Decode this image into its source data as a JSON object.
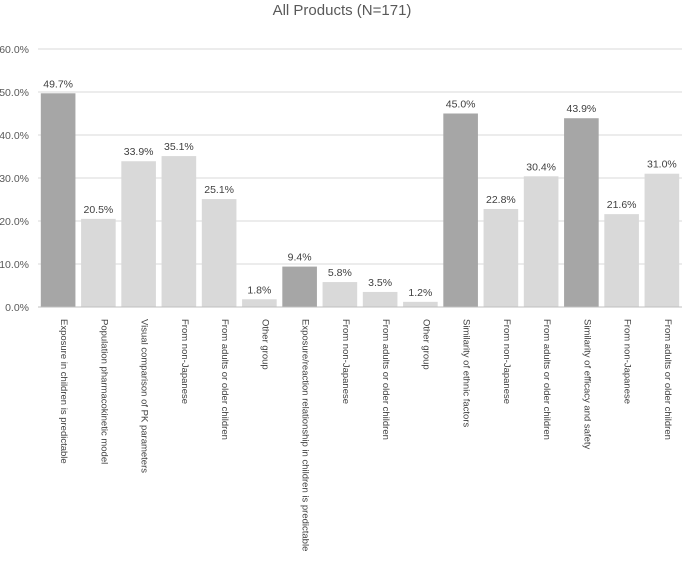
{
  "chart_data": {
    "type": "bar",
    "title": "All Products (N=171)",
    "xlabel": "",
    "ylabel": "",
    "ylim": [
      0,
      60
    ],
    "yticks": [
      0,
      10,
      20,
      30,
      40,
      50,
      60
    ],
    "ytick_labels": [
      "0.0%",
      "10.0%",
      "20.0%",
      "30.0%",
      "40.0%",
      "50.0%",
      "60.0%"
    ],
    "grid": true,
    "legend": "none",
    "categories": [
      "Exposure in children is predictable",
      "Population pharmacokinetic model",
      "Visual comparison of PK parameters",
      "From non-Japanese",
      "From adults or older children",
      "Other group",
      "Exposure/reaction relationship in children is predictable",
      "From non-Japanese",
      "From adults or older children",
      "Other group",
      "Similarity of ethnic factors",
      "From non-Japanese",
      "From adults or older children",
      "Similarity of efficacy and safety",
      "From non-Japanese",
      "From adults or older children"
    ],
    "values": [
      49.7,
      20.5,
      33.9,
      35.1,
      25.1,
      1.8,
      9.4,
      5.8,
      3.5,
      1.2,
      45.0,
      22.8,
      30.4,
      43.9,
      21.6,
      31.0
    ],
    "value_labels": [
      "49.7%",
      "20.5%",
      "33.9%",
      "35.1%",
      "25.1%",
      "1.8%",
      "9.4%",
      "5.8%",
      "3.5%",
      "1.2%",
      "45.0%",
      "22.8%",
      "30.4%",
      "43.9%",
      "21.6%",
      "31.0%"
    ],
    "bar_kind": [
      "main",
      "sub",
      "sub",
      "sub",
      "sub",
      "sub",
      "main",
      "sub",
      "sub",
      "sub",
      "main",
      "sub",
      "sub",
      "main",
      "sub",
      "sub"
    ],
    "colors": {
      "main": "#a6a6a6",
      "sub": "#d9d9d9"
    }
  }
}
